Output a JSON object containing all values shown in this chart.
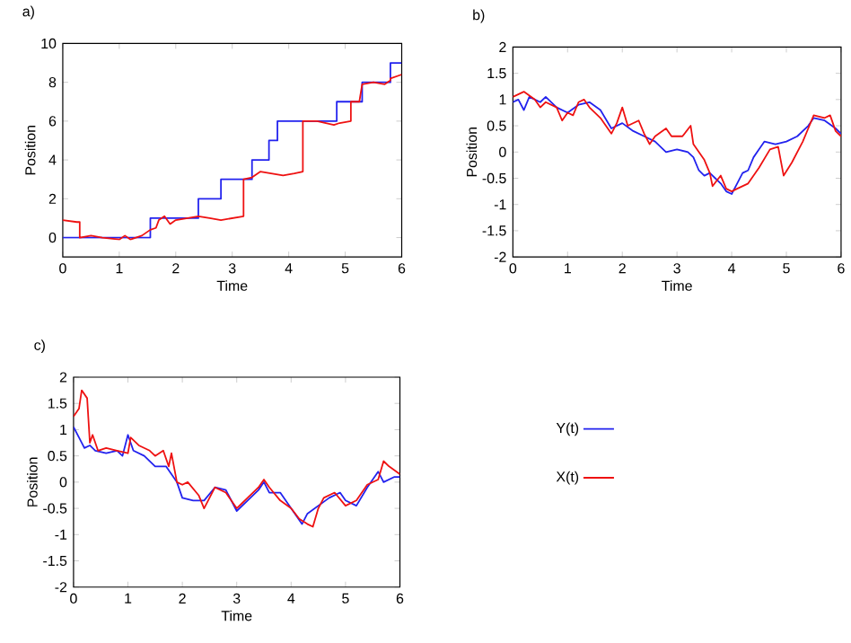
{
  "chart_data": [
    {
      "type": "line",
      "title": "a)",
      "xlabel": "Time",
      "ylabel": "Position",
      "xlim": [
        0,
        6
      ],
      "xticks": [
        0,
        1,
        2,
        3,
        4,
        5,
        6
      ],
      "ylim": [
        -1,
        10
      ],
      "yticks": [
        0,
        2,
        4,
        6,
        8,
        10
      ],
      "series": [
        {
          "type": "step",
          "color": "#2222ee",
          "x": [
            0,
            1.55,
            2.4,
            2.8,
            3.35,
            3.65,
            3.8,
            4.85,
            5.3,
            5.8,
            6
          ],
          "values": [
            0,
            1,
            2,
            3,
            4,
            5,
            6,
            7,
            8,
            9,
            9
          ]
        },
        {
          "type": "line",
          "color": "#ee1111",
          "x": [
            0,
            0.25,
            0.3,
            0.3,
            0.5,
            0.7,
            1.0,
            1.1,
            1.2,
            1.4,
            1.55,
            1.65,
            1.7,
            1.8,
            1.9,
            2.0,
            2.2,
            2.4,
            2.6,
            2.8,
            3.0,
            3.2,
            3.2,
            3.35,
            3.5,
            3.7,
            3.9,
            4.1,
            4.25,
            4.25,
            4.5,
            4.8,
            4.9,
            5.1,
            5.1,
            5.25,
            5.3,
            5.5,
            5.7,
            5.8,
            5.8,
            6.0
          ],
          "values": [
            0.9,
            0.8,
            0.8,
            0,
            0.1,
            0.0,
            -0.1,
            0.1,
            -0.1,
            0.1,
            0.4,
            0.5,
            0.9,
            1.1,
            0.7,
            0.9,
            1.0,
            1.1,
            1.0,
            0.9,
            1.0,
            1.1,
            3.0,
            3.1,
            3.4,
            3.3,
            3.2,
            3.3,
            3.4,
            6.0,
            6.0,
            5.8,
            5.9,
            6.0,
            7.0,
            7.0,
            7.9,
            8.0,
            7.9,
            8.1,
            8.2,
            8.4
          ]
        }
      ]
    },
    {
      "type": "line",
      "title": "b)",
      "xlabel": "Time",
      "ylabel": "Position",
      "xlim": [
        0,
        6
      ],
      "xticks": [
        0,
        1,
        2,
        3,
        4,
        5,
        6
      ],
      "ylim": [
        -2,
        2
      ],
      "yticks": [
        -2,
        -1.5,
        -1,
        -0.5,
        0,
        0.5,
        1,
        1.5,
        2
      ],
      "series": [
        {
          "color": "#2222ee",
          "x": [
            0,
            0.1,
            0.2,
            0.3,
            0.5,
            0.6,
            0.8,
            1.0,
            1.2,
            1.4,
            1.6,
            1.8,
            2.0,
            2.2,
            2.4,
            2.6,
            2.8,
            3.0,
            3.2,
            3.3,
            3.4,
            3.5,
            3.6,
            3.7,
            3.8,
            3.9,
            4.0,
            4.1,
            4.2,
            4.3,
            4.4,
            4.5,
            4.6,
            4.8,
            5.0,
            5.2,
            5.4,
            5.5,
            5.7,
            5.9,
            6.0
          ],
          "values": [
            0.95,
            1.0,
            0.8,
            1.05,
            0.95,
            1.05,
            0.85,
            0.75,
            0.9,
            0.95,
            0.8,
            0.45,
            0.55,
            0.4,
            0.3,
            0.2,
            0.0,
            0.05,
            0.0,
            -0.1,
            -0.35,
            -0.45,
            -0.4,
            -0.5,
            -0.6,
            -0.75,
            -0.8,
            -0.6,
            -0.4,
            -0.35,
            -0.1,
            0.05,
            0.2,
            0.15,
            0.2,
            0.3,
            0.5,
            0.65,
            0.6,
            0.45,
            0.35
          ]
        },
        {
          "color": "#ee1111",
          "x": [
            0,
            0.2,
            0.4,
            0.5,
            0.6,
            0.8,
            0.9,
            1.0,
            1.1,
            1.2,
            1.3,
            1.4,
            1.6,
            1.8,
            1.9,
            2.0,
            2.1,
            2.3,
            2.4,
            2.5,
            2.6,
            2.8,
            2.9,
            3.1,
            3.25,
            3.3,
            3.4,
            3.5,
            3.6,
            3.65,
            3.8,
            3.9,
            4.0,
            4.1,
            4.3,
            4.5,
            4.7,
            4.85,
            4.95,
            5.1,
            5.3,
            5.4,
            5.5,
            5.7,
            5.8,
            5.9,
            6.0
          ],
          "values": [
            1.05,
            1.15,
            1.0,
            0.85,
            0.95,
            0.85,
            0.6,
            0.75,
            0.7,
            0.95,
            1.0,
            0.85,
            0.65,
            0.35,
            0.55,
            0.85,
            0.5,
            0.6,
            0.35,
            0.15,
            0.3,
            0.45,
            0.3,
            0.3,
            0.5,
            0.15,
            0.0,
            -0.15,
            -0.4,
            -0.65,
            -0.45,
            -0.7,
            -0.75,
            -0.7,
            -0.6,
            -0.3,
            0.05,
            0.1,
            -0.45,
            -0.2,
            0.2,
            0.45,
            0.7,
            0.65,
            0.7,
            0.4,
            0.3
          ]
        }
      ]
    },
    {
      "type": "line",
      "title": "c)",
      "xlabel": "Time",
      "ylabel": "Position",
      "xlim": [
        0,
        6
      ],
      "xticks": [
        0,
        1,
        2,
        3,
        4,
        5,
        6
      ],
      "ylim": [
        -2,
        2
      ],
      "yticks": [
        -2,
        -1.5,
        -1,
        -0.5,
        0,
        0.5,
        1,
        1.5,
        2
      ],
      "legend": "right",
      "series": [
        {
          "name": "Y(t)",
          "color": "#2222ee",
          "x": [
            0,
            0.1,
            0.2,
            0.3,
            0.4,
            0.6,
            0.8,
            0.9,
            1.0,
            1.1,
            1.3,
            1.5,
            1.7,
            1.9,
            2.0,
            2.2,
            2.4,
            2.6,
            2.8,
            3.0,
            3.2,
            3.4,
            3.5,
            3.6,
            3.8,
            4.0,
            4.2,
            4.3,
            4.5,
            4.7,
            4.9,
            5.0,
            5.2,
            5.4,
            5.6,
            5.7,
            5.9,
            6.0
          ],
          "values": [
            1.05,
            0.85,
            0.65,
            0.7,
            0.6,
            0.55,
            0.6,
            0.5,
            0.9,
            0.6,
            0.5,
            0.3,
            0.3,
            0.0,
            -0.3,
            -0.35,
            -0.35,
            -0.1,
            -0.15,
            -0.55,
            -0.35,
            -0.15,
            0.0,
            -0.2,
            -0.2,
            -0.5,
            -0.8,
            -0.6,
            -0.45,
            -0.3,
            -0.2,
            -0.35,
            -0.45,
            -0.1,
            0.2,
            0.0,
            0.1,
            0.1
          ]
        },
        {
          "name": "X(t)",
          "color": "#ee1111",
          "x": [
            0,
            0.1,
            0.15,
            0.25,
            0.3,
            0.35,
            0.45,
            0.6,
            0.8,
            1.0,
            1.05,
            1.2,
            1.4,
            1.5,
            1.65,
            1.75,
            1.8,
            1.9,
            2.0,
            2.1,
            2.3,
            2.4,
            2.5,
            2.6,
            2.8,
            3.0,
            3.1,
            3.2,
            3.4,
            3.5,
            3.6,
            3.8,
            4.0,
            4.15,
            4.3,
            4.4,
            4.5,
            4.6,
            4.8,
            5.0,
            5.2,
            5.4,
            5.6,
            5.7,
            5.8,
            6.0
          ],
          "values": [
            1.25,
            1.4,
            1.75,
            1.6,
            0.75,
            0.9,
            0.6,
            0.65,
            0.6,
            0.55,
            0.85,
            0.7,
            0.6,
            0.5,
            0.6,
            0.3,
            0.55,
            0.0,
            -0.05,
            0.0,
            -0.25,
            -0.5,
            -0.3,
            -0.1,
            -0.2,
            -0.5,
            -0.4,
            -0.3,
            -0.1,
            0.05,
            -0.1,
            -0.35,
            -0.5,
            -0.7,
            -0.8,
            -0.85,
            -0.5,
            -0.3,
            -0.2,
            -0.45,
            -0.35,
            -0.05,
            0.05,
            0.4,
            0.3,
            0.15
          ]
        }
      ]
    }
  ]
}
